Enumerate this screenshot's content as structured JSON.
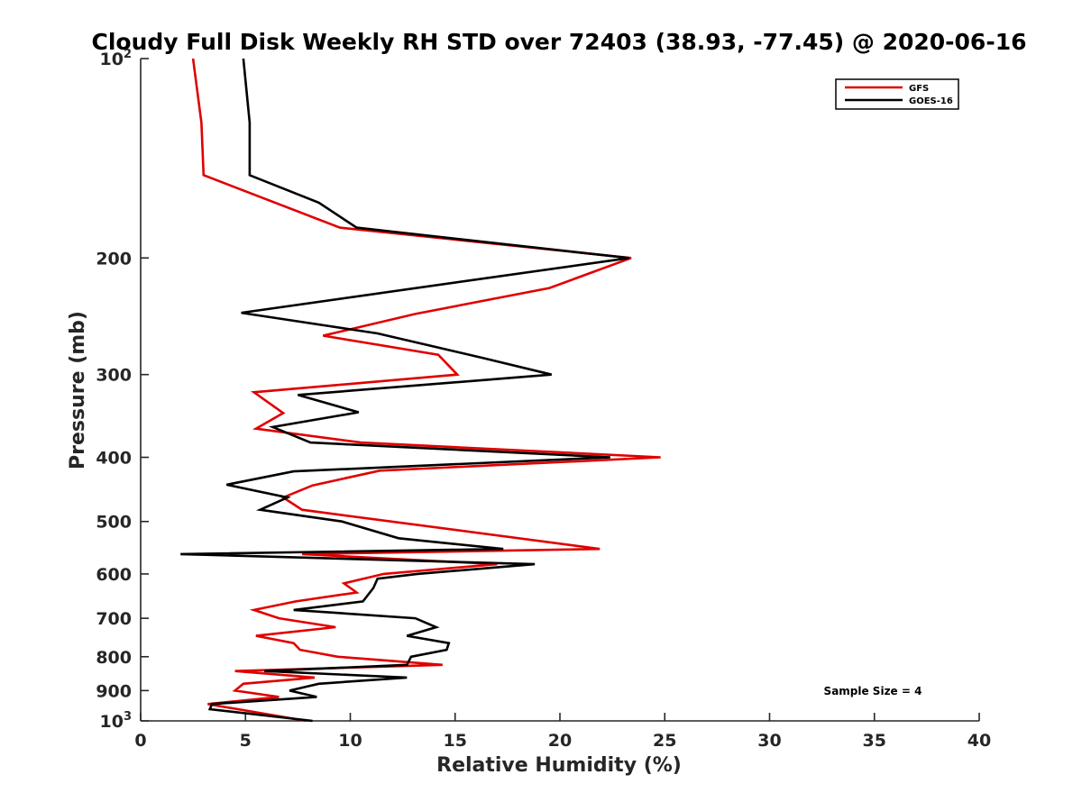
{
  "chart_data": {
    "type": "line",
    "title": "Cloudy Full Disk Weekly RH STD over 72403 (38.93, -77.45) @ 2020-06-16",
    "xlabel": "Relative Humidity (%)",
    "ylabel": "Pressure (mb)",
    "xlim": [
      0,
      40
    ],
    "ylim": [
      100,
      1000
    ],
    "y_scale": "log",
    "y_reversed": true,
    "x_ticks": [
      0,
      5,
      10,
      15,
      20,
      25,
      30,
      35,
      40
    ],
    "x_tick_labels": [
      "0",
      "5",
      "10",
      "15",
      "20",
      "25",
      "30",
      "35",
      "40"
    ],
    "y_ticks": [
      100,
      200,
      300,
      400,
      500,
      600,
      700,
      800,
      900,
      1000
    ],
    "y_tick_labels": [
      {
        "base": "10",
        "sup": "2"
      },
      {
        "base": "200",
        "sup": ""
      },
      {
        "base": "300",
        "sup": ""
      },
      {
        "base": "400",
        "sup": ""
      },
      {
        "base": "500",
        "sup": ""
      },
      {
        "base": "600",
        "sup": ""
      },
      {
        "base": "700",
        "sup": ""
      },
      {
        "base": "800",
        "sup": ""
      },
      {
        "base": "900",
        "sup": ""
      },
      {
        "base": "10",
        "sup": "3"
      }
    ],
    "grid": false,
    "legend_position": "top-right",
    "annotation": "Sample Size = 4",
    "series": [
      {
        "name": "GFS",
        "color": "#e00000",
        "points": [
          [
            2.5,
            100
          ],
          [
            2.9,
            125
          ],
          [
            3.0,
            150
          ],
          [
            9.5,
            180
          ],
          [
            23.4,
            200
          ],
          [
            19.5,
            222
          ],
          [
            13.1,
            243
          ],
          [
            8.7,
            262
          ],
          [
            14.2,
            280
          ],
          [
            15.1,
            300
          ],
          [
            5.4,
            319
          ],
          [
            6.8,
            343
          ],
          [
            5.5,
            362
          ],
          [
            10.5,
            380
          ],
          [
            24.8,
            400
          ],
          [
            11.4,
            419
          ],
          [
            8.2,
            441
          ],
          [
            6.8,
            460
          ],
          [
            7.7,
            480
          ],
          [
            21.9,
            550
          ],
          [
            7.7,
            560
          ],
          [
            17.0,
            580
          ],
          [
            11.6,
            600
          ],
          [
            9.7,
            620
          ],
          [
            10.3,
            640
          ],
          [
            7.4,
            660
          ],
          [
            5.4,
            680
          ],
          [
            6.6,
            700
          ],
          [
            9.3,
            722
          ],
          [
            5.5,
            744
          ],
          [
            7.3,
            763
          ],
          [
            7.6,
            781
          ],
          [
            9.4,
            800
          ],
          [
            14.4,
            823
          ],
          [
            4.5,
            841
          ],
          [
            8.3,
            860
          ],
          [
            4.9,
            879
          ],
          [
            4.5,
            900
          ],
          [
            6.6,
            920
          ],
          [
            3.2,
            943
          ],
          [
            7.9,
            1000
          ]
        ]
      },
      {
        "name": "GOES-16",
        "color": "#000000",
        "points": [
          [
            4.9,
            100
          ],
          [
            5.2,
            125
          ],
          [
            5.2,
            150
          ],
          [
            8.5,
            165
          ],
          [
            10.3,
            180
          ],
          [
            23.3,
            200
          ],
          [
            4.8,
            242
          ],
          [
            11.3,
            260
          ],
          [
            16.3,
            283
          ],
          [
            19.6,
            300
          ],
          [
            7.5,
            322
          ],
          [
            10.4,
            342
          ],
          [
            6.3,
            360
          ],
          [
            8.1,
            380
          ],
          [
            22.4,
            400
          ],
          [
            7.3,
            420
          ],
          [
            4.1,
            440
          ],
          [
            7.0,
            460
          ],
          [
            5.7,
            480
          ],
          [
            9.6,
            500
          ],
          [
            12.3,
            530
          ],
          [
            17.3,
            550
          ],
          [
            1.9,
            560
          ],
          [
            18.8,
            580
          ],
          [
            13.2,
            600
          ],
          [
            11.3,
            610
          ],
          [
            11.1,
            630
          ],
          [
            10.6,
            660
          ],
          [
            7.3,
            680
          ],
          [
            13.1,
            700
          ],
          [
            14.1,
            722
          ],
          [
            12.7,
            744
          ],
          [
            14.7,
            763
          ],
          [
            14.6,
            781
          ],
          [
            12.9,
            800
          ],
          [
            12.7,
            823
          ],
          [
            5.9,
            841
          ],
          [
            12.7,
            860
          ],
          [
            8.5,
            879
          ],
          [
            7.1,
            900
          ],
          [
            8.4,
            920
          ],
          [
            3.4,
            943
          ],
          [
            3.3,
            960
          ],
          [
            8.2,
            1000
          ]
        ]
      }
    ]
  }
}
